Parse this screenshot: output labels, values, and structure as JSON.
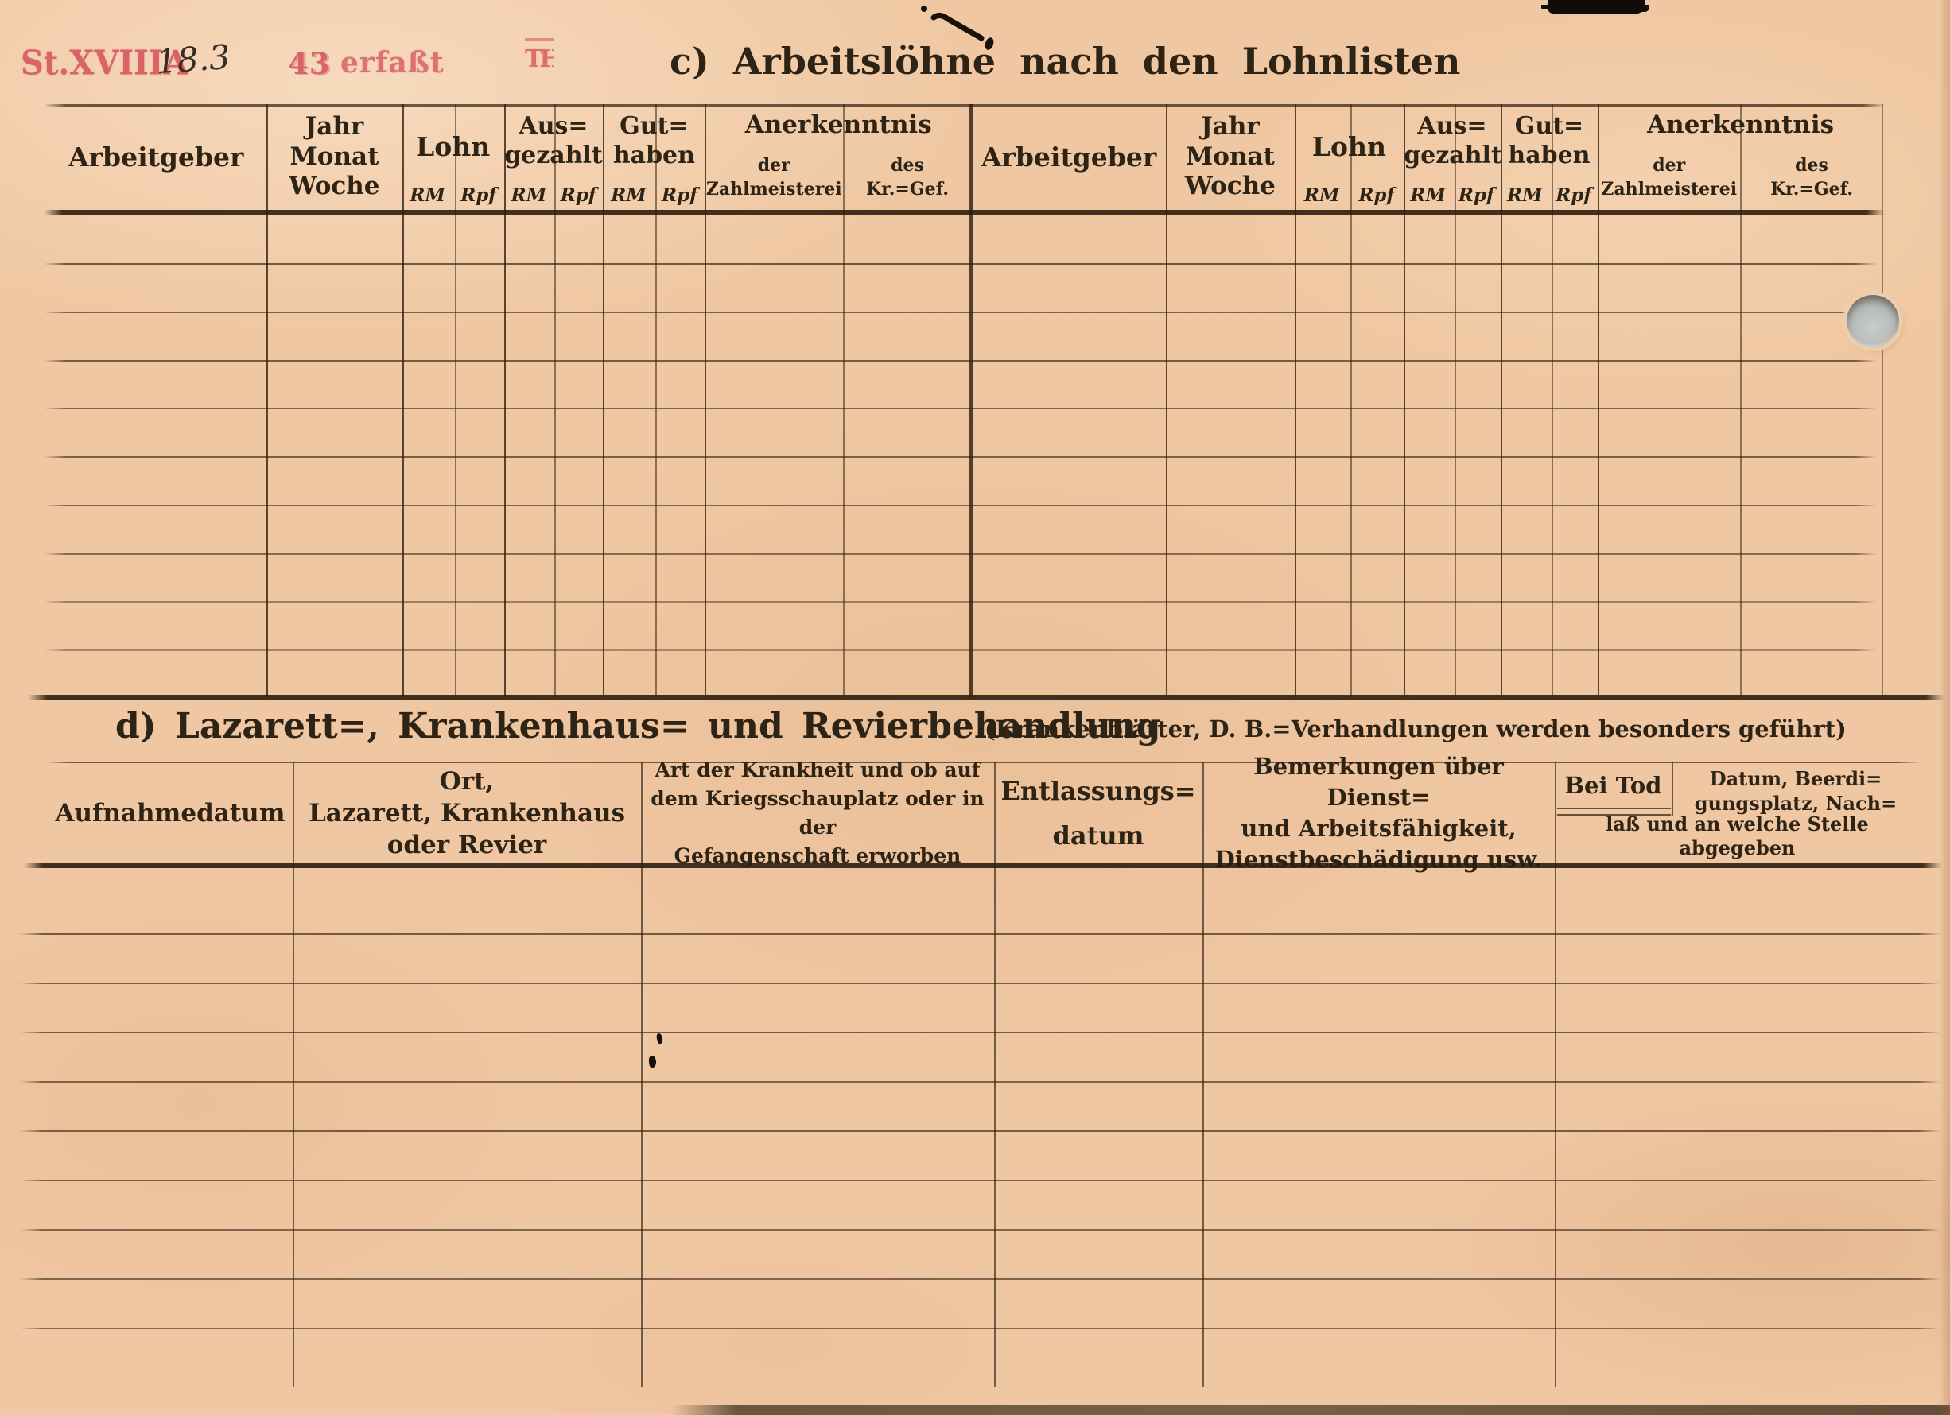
{
  "colors": {
    "paper": "#efc7a2",
    "ink": "#2e2416",
    "stamp_red": "#d5545f",
    "hole_gray": "#b7bab8"
  },
  "stamps": {
    "stalag": "St.XVIIIA",
    "handwritten_date": "18.3",
    "year": "43",
    "erfasst": "erfaßt",
    "small_mark": "TH"
  },
  "section_c": {
    "title": "c) Arbeitslöhne nach den Lohnlisten",
    "header": {
      "arbeitgeber": "Arbeitgeber",
      "jahr": [
        "Jahr",
        "Monat",
        "Woche"
      ],
      "lohn": "Lohn",
      "ausgezahlt": [
        "Aus=",
        "gezahlt"
      ],
      "guthaben": [
        "Gut=",
        "haben"
      ],
      "anerkenntnis": "Anerkenntnis",
      "zahlmeisterei": [
        "der",
        "Zahlmeisterei"
      ],
      "krgef": [
        "des",
        "Kr.=Gef."
      ],
      "rm": "RM",
      "rpf": "Rpf"
    }
  },
  "section_d": {
    "title": "d) Lazarett=, Krankenhaus= und Revierbehandlung",
    "subtitle": "(Krankenblätter, D. B.=Verhandlungen werden besonders geführt)",
    "header": {
      "aufnahmedatum": "Aufnahmedatum",
      "ort": [
        "Ort,",
        "Lazarett, Krankenhaus",
        "oder Revier"
      ],
      "art": [
        "Art der Krankheit und ob auf",
        "dem Kriegsschauplatz oder in der",
        "Gefangenschaft erworben"
      ],
      "entlassung": [
        "Entlassungs=",
        "datum"
      ],
      "bemerkungen": [
        "Bemerkungen über Dienst=",
        "und Arbeitsfähigkeit,",
        "Dienstbeschädigung usw."
      ],
      "bei_tod": "Bei Tod",
      "tod_rechts": [
        "Datum, Beerdi=",
        "gungsplatz, Nach="
      ],
      "tod_unten": [
        "laß und an welche Stelle",
        "abgegeben"
      ]
    }
  }
}
